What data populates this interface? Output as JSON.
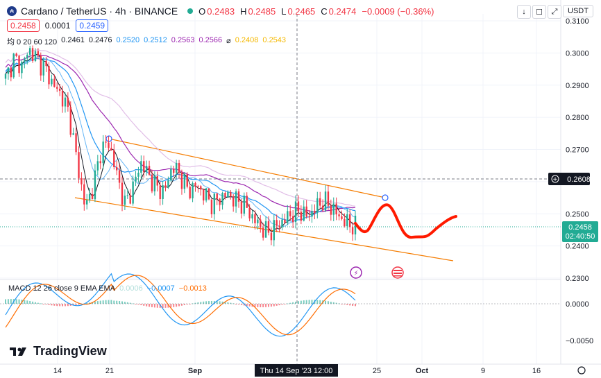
{
  "header": {
    "symbol": "Cardano / TetherUS · 4h · BINANCE",
    "o_label": "O",
    "o_val": "0.2483",
    "h_label": "H",
    "h_val": "0.2485",
    "l_label": "L",
    "l_val": "0.2465",
    "c_label": "C",
    "c_val": "0.2474",
    "change": "−0.0009 (−0.36%)",
    "bid": "0.2458",
    "spread": "0.0001",
    "ask": "0.2459"
  },
  "toolbar": {
    "down_icon": "↓",
    "square_icon": "☐",
    "expand_icon": "⤢",
    "currency": "USDT"
  },
  "ma": {
    "label": "均 0 20 60 120",
    "v1": "0.2461",
    "v2": "0.2476",
    "v3": "0.2520",
    "v4": "0.2512",
    "v5": "0.2563",
    "v6": "0.2566",
    "sym": "⌀",
    "v7": "0.2408",
    "v8": "0.2543"
  },
  "macd": {
    "label": "MACD 12 26 close 9 EMA EMA",
    "hist": "0.0006",
    "macd": "−0.0007",
    "signal": "−0.0013"
  },
  "colors": {
    "up": "#22ab94",
    "down": "#f23645",
    "channel": "#f57c00",
    "ma20": "#2196f3",
    "ma60": "#9c27b0",
    "ma120": "#e1bee7",
    "fast": "#131722",
    "drawing": "#ff1a00"
  },
  "chart_data": {
    "type": "candlestick",
    "title": "Cardano / TetherUS · 4h · BINANCE",
    "y_ticks": [
      "0.3100",
      "0.3000",
      "0.2900",
      "0.2800",
      "0.2700",
      "0.2600",
      "0.2500",
      "0.2400",
      "0.2300"
    ],
    "x_ticks": [
      "14",
      "21",
      "Sep",
      "25",
      "Oct",
      "9",
      "16"
    ],
    "crosshair_label": "Thu 14 Sep '23   12:00",
    "price_line_label": "0.2608",
    "last_price_label": "0.2458",
    "countdown_label": "02:40:50",
    "macd_ticks": [
      "0.0000",
      "−0.0050"
    ],
    "ylim": [
      0.23,
      0.31
    ],
    "series": [
      {
        "name": "close",
        "values": [
          0.292,
          0.298,
          0.296,
          0.301,
          0.298,
          0.295,
          0.29,
          0.287,
          0.281,
          0.266,
          0.252,
          0.258,
          0.27,
          0.272,
          0.262,
          0.253,
          0.258,
          0.266,
          0.262,
          0.258,
          0.257,
          0.265,
          0.262,
          0.257,
          0.259,
          0.256,
          0.253,
          0.255,
          0.256,
          0.254,
          0.253,
          0.249,
          0.246,
          0.244,
          0.246,
          0.248,
          0.25,
          0.251,
          0.249,
          0.252,
          0.254,
          0.252,
          0.249,
          0.247,
          0.246
        ]
      }
    ]
  }
}
